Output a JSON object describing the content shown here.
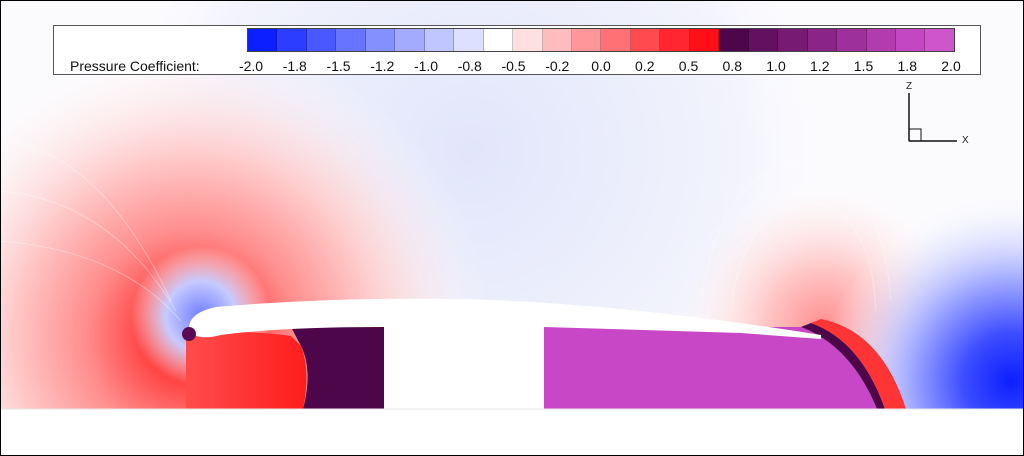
{
  "legend": {
    "title": "Pressure Coefficient:",
    "ticks": [
      "-2.0",
      "-1.8",
      "-1.5",
      "-1.2",
      "-1.0",
      "-0.8",
      "-0.5",
      "-0.2",
      "0.0",
      "0.2",
      "0.5",
      "0.8",
      "1.0",
      "1.2",
      "1.5",
      "1.8",
      "2.0"
    ],
    "colors": [
      "#0b1fff",
      "#2d3dff",
      "#4a59ff",
      "#6774ff",
      "#8590ff",
      "#a2abff",
      "#c0c6ff",
      "#dde1ff",
      "#ffffff",
      "#ffdfe0",
      "#ffbcbf",
      "#ff979a",
      "#ff7175",
      "#ff4b50",
      "#ff2630",
      "#ff0f18",
      "#4e064b",
      "#62105f",
      "#761a73",
      "#8a2587",
      "#9e309b",
      "#b03cae",
      "#c247c0",
      "#cf55cc"
    ]
  },
  "axes": {
    "z_label": "Z",
    "x_label": "X"
  },
  "colors": {
    "purple_dark": "#4e064b",
    "purple_light": "#c847c6",
    "red_high": "#ff2a2a",
    "blue_low": "#0b1fff"
  }
}
